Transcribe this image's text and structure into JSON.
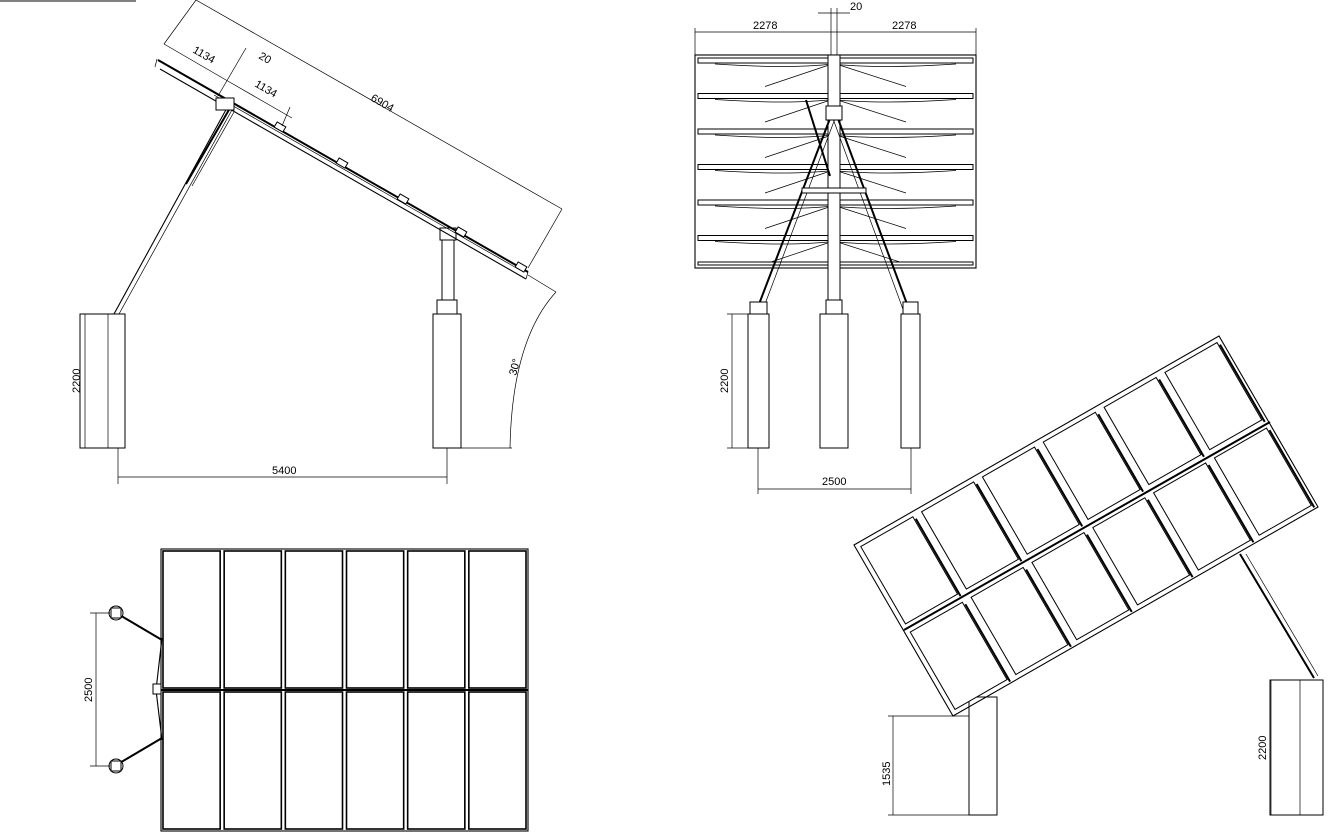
{
  "views": {
    "side": {
      "dim_panel_length": "6904",
      "dim_offset_left": "1134",
      "dim_gap": "20",
      "dim_offset_right": "1134",
      "dim_pier_height": "2200",
      "dim_pier_spacing": "5400",
      "dim_tilt_angle": "30°"
    },
    "front": {
      "dim_center_gap": "20",
      "dim_half_width_left": "2278",
      "dim_half_width_right": "2278",
      "dim_pier_height": "2200",
      "dim_leg_spacing": "2500"
    },
    "plan": {
      "dim_leg_spacing": "2500"
    },
    "isometric": {
      "dim_front_pier_height": "1535",
      "dim_rear_pier_height": "2200"
    }
  }
}
